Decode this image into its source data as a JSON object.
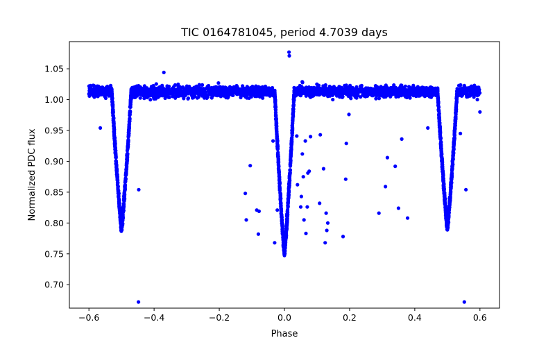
{
  "chart_data": {
    "type": "scatter",
    "title": "TIC 0164781045, period 4.7039 days",
    "xlabel": "Phase",
    "ylabel": "Normalized PDC flux",
    "xlim": [
      -0.66,
      0.66
    ],
    "ylim": [
      0.662,
      1.094
    ],
    "xticks": [
      -0.6,
      -0.4,
      -0.2,
      0.0,
      0.2,
      0.4,
      0.6
    ],
    "xtick_labels": [
      "−0.6",
      "−0.4",
      "−0.2",
      "0.0",
      "0.2",
      "0.4",
      "0.6"
    ],
    "yticks": [
      0.7,
      0.75,
      0.8,
      0.85,
      0.9,
      0.95,
      1.0,
      1.05
    ],
    "ytick_labels": [
      "0.70",
      "0.75",
      "0.80",
      "0.85",
      "0.90",
      "0.95",
      "1.00",
      "1.05"
    ],
    "color": "#0000ff",
    "series": [
      {
        "name": "primary eclipse",
        "center": 0.0,
        "depth_flux": 0.752,
        "width_phase": 0.03
      },
      {
        "name": "secondary eclipse",
        "centers": [
          -0.5,
          0.5
        ],
        "depth_flux": 0.793,
        "width_phase": 0.03
      },
      {
        "name": "baseline",
        "x_range": [
          -0.6,
          0.6
        ],
        "flux_mean": 1.013,
        "flux_spread": [
          0.995,
          1.03
        ]
      },
      {
        "name": "outliers",
        "points": [
          [
            -0.565,
            0.954
          ],
          [
            -0.477,
            0.945
          ],
          [
            -0.447,
            0.854
          ],
          [
            -0.448,
            0.672
          ],
          [
            -0.12,
            0.848
          ],
          [
            -0.117,
            0.805
          ],
          [
            -0.105,
            0.893
          ],
          [
            -0.085,
            0.821
          ],
          [
            -0.078,
            0.819
          ],
          [
            -0.08,
            0.782
          ],
          [
            -0.03,
            0.768
          ],
          [
            -0.022,
            0.821
          ],
          [
            -0.035,
            0.933
          ],
          [
            0.04,
            0.862
          ],
          [
            0.038,
            0.941
          ],
          [
            0.05,
            0.826
          ],
          [
            0.052,
            0.843
          ],
          [
            0.055,
            0.912
          ],
          [
            0.058,
            0.875
          ],
          [
            0.06,
            0.805
          ],
          [
            0.064,
            0.933
          ],
          [
            0.066,
            0.783
          ],
          [
            0.07,
            0.826
          ],
          [
            0.072,
            0.881
          ],
          [
            0.076,
            0.884
          ],
          [
            0.08,
            0.94
          ],
          [
            0.11,
            0.943
          ],
          [
            0.108,
            0.832
          ],
          [
            0.12,
            0.888
          ],
          [
            0.125,
            0.768
          ],
          [
            0.128,
            0.816
          ],
          [
            0.13,
            0.788
          ],
          [
            0.133,
            0.8
          ],
          [
            0.18,
            0.778
          ],
          [
            0.188,
            0.871
          ],
          [
            0.19,
            0.929
          ],
          [
            0.198,
            0.976
          ],
          [
            0.29,
            0.816
          ],
          [
            0.31,
            0.859
          ],
          [
            0.316,
            0.906
          ],
          [
            0.34,
            0.892
          ],
          [
            0.35,
            0.824
          ],
          [
            0.36,
            0.936
          ],
          [
            0.378,
            0.808
          ],
          [
            0.44,
            0.954
          ],
          [
            0.54,
            0.945
          ],
          [
            0.557,
            0.854
          ],
          [
            0.552,
            0.672
          ],
          [
            0.014,
            1.077
          ],
          [
            0.015,
            1.071
          ],
          [
            -0.37,
            1.044
          ],
          [
            0.6,
            0.98
          ]
        ]
      }
    ]
  }
}
